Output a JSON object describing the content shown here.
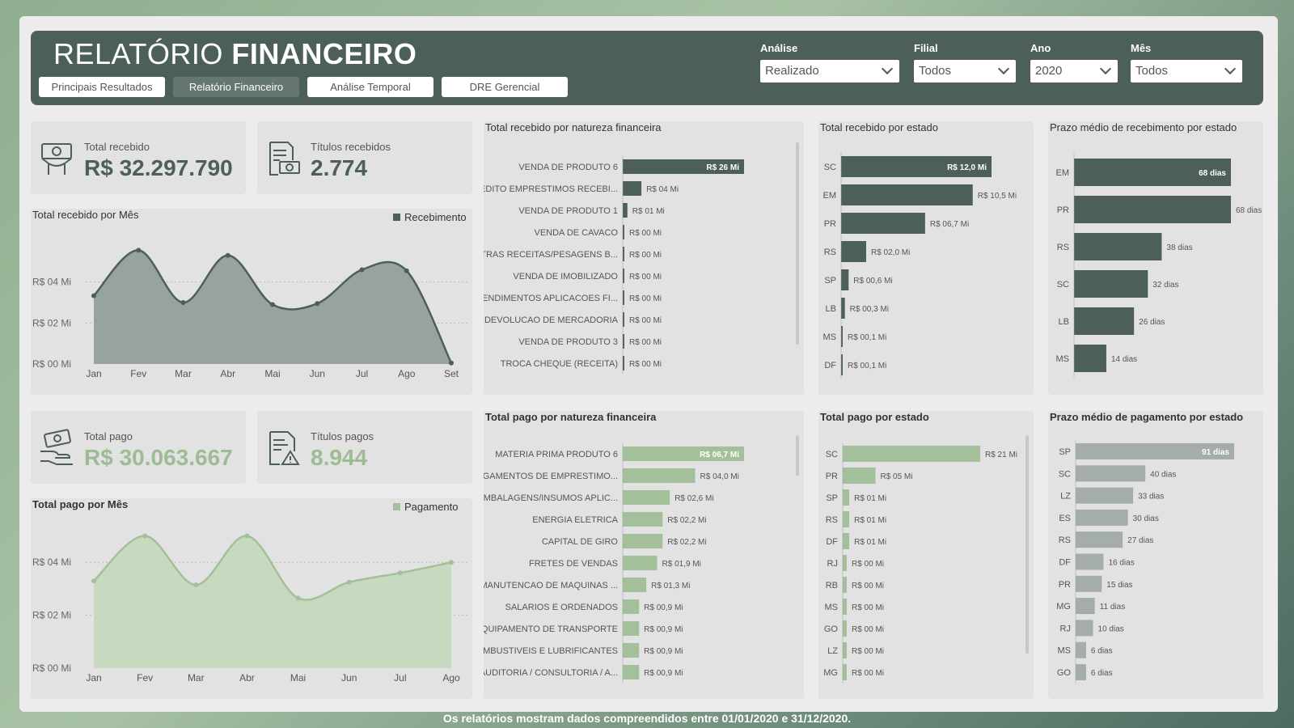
{
  "header": {
    "title_light": "RELATÓRIO",
    "title_bold": "FINANCEIRO",
    "tabs": [
      {
        "label": "Principais Resultados"
      },
      {
        "label": "Relatório Financeiro"
      },
      {
        "label": "Análise Temporal"
      },
      {
        "label": "DRE Gerencial"
      }
    ],
    "filters": [
      {
        "label": "Análise",
        "value": "Realizado"
      },
      {
        "label": "Filial",
        "value": "Todos"
      },
      {
        "label": "Ano",
        "value": "2020"
      },
      {
        "label": "Mês",
        "value": "Todos"
      }
    ]
  },
  "kpis": {
    "total_recebido": {
      "label": "Total recebido",
      "value": "R$ 32.297.790",
      "icon": "money-hand-icon"
    },
    "titulos_recebidos": {
      "label": "Títulos recebidos",
      "value": "2.774",
      "icon": "receipt-money-icon"
    },
    "total_pago": {
      "label": "Total pago",
      "value": "R$ 30.063.667",
      "icon": "hand-pay-icon"
    },
    "titulos_pagos": {
      "label": "Títulos pagos",
      "value": "8.944",
      "icon": "document-warning-icon"
    }
  },
  "colors": {
    "dark": "#4d5f5a",
    "green": "#a3c09a",
    "gray_bar": "#a4adaa",
    "area_fill_dark": "#98a39f",
    "area_fill_green": "#c7d9bf"
  },
  "chart_data": [
    {
      "id": "recebido_mes",
      "type": "area",
      "title": "Total recebido por Mês",
      "legend": "Recebimento",
      "categories": [
        "Jan",
        "Fev",
        "Mar",
        "Abr",
        "Mai",
        "Jun",
        "Jul",
        "Ago",
        "Set"
      ],
      "values": [
        3.33,
        5.55,
        3.0,
        5.3,
        2.9,
        2.95,
        4.6,
        4.55,
        0.05
      ],
      "yticks": [
        "R$ 00 Mi",
        "R$ 02 Mi",
        "R$ 04 Mi"
      ],
      "ylim": [
        0,
        6
      ]
    },
    {
      "id": "pago_mes",
      "type": "area",
      "title": "Total pago por Mês",
      "legend": "Pagamento",
      "categories": [
        "Jan",
        "Fev",
        "Mar",
        "Abr",
        "Mai",
        "Jun",
        "Jul",
        "Ago"
      ],
      "values": [
        3.3,
        5.0,
        3.15,
        5.0,
        2.65,
        3.25,
        3.6,
        4.0
      ],
      "yticks": [
        "R$ 00 Mi",
        "R$ 02 Mi",
        "R$ 04 Mi"
      ],
      "ylim": [
        0,
        5.2
      ]
    },
    {
      "id": "recebido_natureza",
      "type": "bar",
      "title": "Total recebido por natureza financeira",
      "categories": [
        "VENDA DE PRODUTO 6",
        "CREDITO EMPRESTIMOS RECEBI...",
        "VENDA DE PRODUTO 1",
        "VENDA DE CAVACO",
        "OUTRAS RECEITAS/PESAGENS B...",
        "VENDA DE IMOBILIZADO",
        "RENDIMENTOS APLICACOES FI...",
        "DEVOLUCAO DE MERCADORIA",
        "VENDA DE PRODUTO 3",
        "TROCA CHEQUE (RECEITA)"
      ],
      "values": [
        26,
        4,
        1,
        0.1,
        0.1,
        0.1,
        0.1,
        0.1,
        0.1,
        0.1
      ],
      "labels": [
        "R$ 26 Mi",
        "R$ 04 Mi",
        "R$ 01 Mi",
        "R$ 00 Mi",
        "R$ 00 Mi",
        "R$ 00 Mi",
        "R$ 00 Mi",
        "R$ 00 Mi",
        "R$ 00 Mi",
        "R$ 00 Mi"
      ],
      "max": 26
    },
    {
      "id": "recebido_estado",
      "type": "bar",
      "title": "Total recebido por estado",
      "categories": [
        "SC",
        "EM",
        "PR",
        "RS",
        "SP",
        "LB",
        "MS",
        "DF"
      ],
      "values": [
        12.0,
        10.5,
        6.7,
        2.0,
        0.6,
        0.3,
        0.1,
        0.1
      ],
      "labels": [
        "R$ 12,0 Mi",
        "R$ 10,5 Mi",
        "R$ 06,7 Mi",
        "R$ 02,0 Mi",
        "R$ 00,6 Mi",
        "R$ 00,3 Mi",
        "R$ 00,1 Mi",
        "R$ 00,1 Mi"
      ],
      "max": 12.0
    },
    {
      "id": "prazo_recebimento",
      "type": "bar",
      "title": "Prazo médio de recebimento por estado",
      "categories": [
        "EM",
        "PR",
        "RS",
        "SC",
        "LB",
        "MS"
      ],
      "values": [
        68,
        68,
        38,
        32,
        26,
        14
      ],
      "labels": [
        "68 dias",
        "68 dias",
        "38 dias",
        "32 dias",
        "26 dias",
        "14 dias"
      ],
      "max": 68
    },
    {
      "id": "pago_natureza",
      "type": "bar",
      "title": "Total pago por natureza financeira",
      "categories": [
        "MATERIA PRIMA PRODUTO 6",
        "PAGAMENTOS DE EMPRESTIMO...",
        "EMBALAGENS/INSUMOS APLIC...",
        "ENERGIA ELETRICA",
        "CAPITAL DE GIRO",
        "FRETES DE VENDAS",
        "MANUTENCAO DE MAQUINAS ...",
        "SALARIOS E ORDENADOS",
        "EQUIPAMENTO DE TRANSPORTE",
        "COMBUSTIVEIS E LUBRIFICANTES",
        "AUDITORIA / CONSULTORIA / A..."
      ],
      "values": [
        6.7,
        4.0,
        2.6,
        2.2,
        2.2,
        1.9,
        1.3,
        0.9,
        0.9,
        0.9,
        0.9
      ],
      "labels": [
        "R$ 06,7 Mi",
        "R$ 04,0 Mi",
        "R$ 02,6 Mi",
        "R$ 02,2 Mi",
        "R$ 02,2 Mi",
        "R$ 01,9 Mi",
        "R$ 01,3 Mi",
        "R$ 00,9 Mi",
        "R$ 00,9 Mi",
        "R$ 00,9 Mi",
        "R$ 00,9 Mi"
      ],
      "max": 6.7
    },
    {
      "id": "pago_estado",
      "type": "bar",
      "title": "Total pago por estado",
      "categories": [
        "SC",
        "PR",
        "SP",
        "RS",
        "DF",
        "RJ",
        "RB",
        "MS",
        "GO",
        "LZ",
        "MG"
      ],
      "values": [
        21,
        5,
        1,
        1,
        1,
        0.1,
        0.1,
        0.1,
        0.1,
        0.1,
        0.1
      ],
      "labels": [
        "R$ 21 Mi",
        "R$ 05 Mi",
        "R$ 01 Mi",
        "R$ 01 Mi",
        "R$ 01 Mi",
        "R$ 00 Mi",
        "R$ 00 Mi",
        "R$ 00 Mi",
        "R$ 00 Mi",
        "R$ 00 Mi",
        "R$ 00 Mi"
      ],
      "max": 21
    },
    {
      "id": "prazo_pagamento",
      "type": "bar",
      "title": "Prazo médio de pagamento por estado",
      "categories": [
        "SP",
        "SC",
        "LZ",
        "ES",
        "RS",
        "DF",
        "PR",
        "MG",
        "RJ",
        "MS",
        "GO"
      ],
      "values": [
        91,
        40,
        33,
        30,
        27,
        16,
        15,
        11,
        10,
        6,
        6
      ],
      "labels": [
        "91 dias",
        "40 dias",
        "33 dias",
        "30 dias",
        "27 dias",
        "16 dias",
        "15 dias",
        "11 dias",
        "10 dias",
        "6 dias",
        "6 dias"
      ],
      "max": 91
    }
  ],
  "footer": "Os relatórios mostram dados compreendidos entre 01/01/2020 e 31/12/2020."
}
